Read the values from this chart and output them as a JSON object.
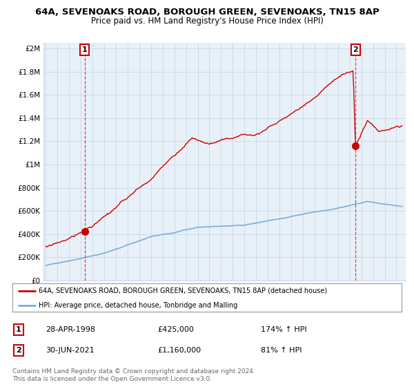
{
  "title": "64A, SEVENOAKS ROAD, BOROUGH GREEN, SEVENOAKS, TN15 8AP",
  "subtitle": "Price paid vs. HM Land Registry's House Price Index (HPI)",
  "ylabel_ticks": [
    "£0",
    "£200K",
    "£400K",
    "£600K",
    "£800K",
    "£1M",
    "£1.2M",
    "£1.4M",
    "£1.6M",
    "£1.8M",
    "£2M"
  ],
  "ytick_values": [
    0,
    200000,
    400000,
    600000,
    800000,
    1000000,
    1200000,
    1400000,
    1600000,
    1800000,
    2000000
  ],
  "ylim": [
    0,
    2050000
  ],
  "xlim_start": 1994.8,
  "xlim_end": 2025.8,
  "red_color": "#cc0000",
  "blue_color": "#7bafd4",
  "chart_bg": "#e8f0f8",
  "sale1_year": 1998.32,
  "sale1_price": 425000,
  "sale1_label": "1",
  "sale1_text": "28-APR-1998",
  "sale1_amount": "£425,000",
  "sale1_hpi": "174% ↑ HPI",
  "sale2_year": 2021.5,
  "sale2_price": 1160000,
  "sale2_label": "2",
  "sale2_text": "30-JUN-2021",
  "sale2_amount": "£1,160,000",
  "sale2_hpi": "81% ↑ HPI",
  "legend_line1": "64A, SEVENOAKS ROAD, BOROUGH GREEN, SEVENOAKS, TN15 8AP (detached house)",
  "legend_line2": "HPI: Average price, detached house, Tonbridge and Malling",
  "footer1": "Contains HM Land Registry data © Crown copyright and database right 2024.",
  "footer2": "This data is licensed under the Open Government Licence v3.0.",
  "background_color": "#ffffff",
  "grid_color": "#c8d8e8"
}
